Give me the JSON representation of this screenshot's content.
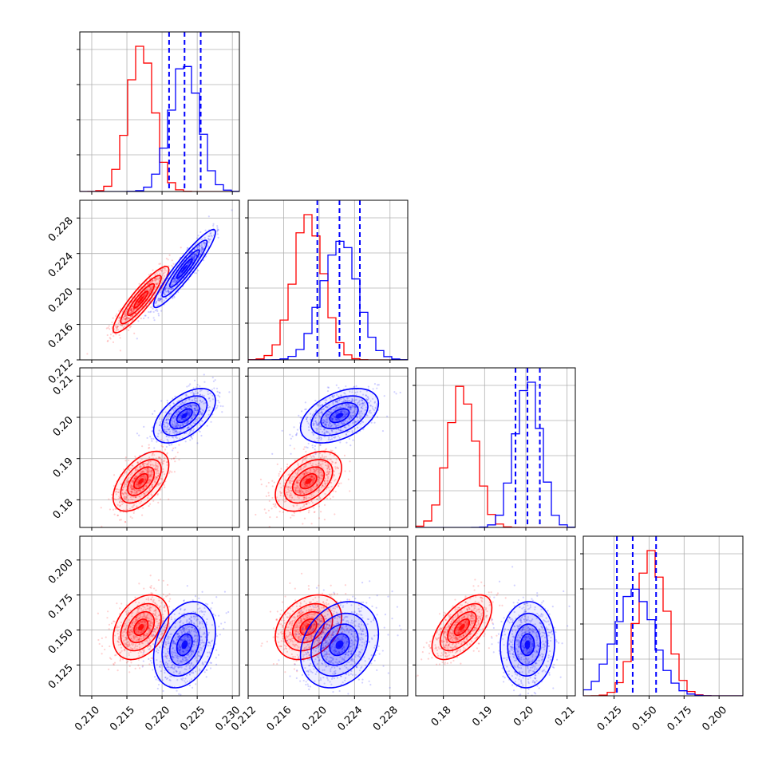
{
  "chart_data": {
    "type": "corner",
    "parameters": 4,
    "grid": true,
    "colors": {
      "sample_a": "#ff0000",
      "sample_b": "#0000ff",
      "quantile_lines": "#0000ff"
    },
    "axes": [
      {
        "lim": [
          0.2083,
          0.231
        ],
        "ticks": [
          0.21,
          0.215,
          0.22,
          0.225,
          0.23
        ],
        "tick_labels": [
          "0.210",
          "0.215",
          "0.220",
          "0.225",
          "0.230"
        ]
      },
      {
        "lim": [
          0.212,
          0.23
        ],
        "ticks": [
          0.212,
          0.216,
          0.22,
          0.224,
          0.228
        ],
        "tick_labels": [
          "0.212",
          "0.216",
          "0.220",
          "0.224",
          "0.228"
        ]
      },
      {
        "lim": [
          0.1733,
          0.212
        ],
        "ticks": [
          0.18,
          0.19,
          0.2,
          0.21
        ],
        "tick_labels": [
          "0.18",
          "0.19",
          "0.20",
          "0.21"
        ]
      },
      {
        "lim": [
          0.103,
          0.217
        ],
        "ticks": [
          0.125,
          0.15,
          0.175,
          0.2
        ],
        "tick_labels": [
          "0.125",
          "0.150",
          "0.175",
          "0.200"
        ]
      }
    ],
    "series": [
      {
        "color": "red",
        "mean": [
          0.217,
          0.2188,
          0.1845,
          0.152
        ],
        "std": [
          0.0018,
          0.0017,
          0.0033,
          0.0105
        ]
      },
      {
        "color": "blue",
        "mean": [
          0.2232,
          0.2223,
          0.2004,
          0.1395
        ],
        "std": [
          0.002,
          0.002,
          0.003,
          0.014
        ]
      }
    ],
    "correlations": [
      {
        "i": 1,
        "j": 0,
        "red": 0.9,
        "blue": 0.93
      },
      {
        "i": 2,
        "j": 0,
        "red": 0.55,
        "blue": 0.55
      },
      {
        "i": 2,
        "j": 1,
        "red": 0.45,
        "blue": 0.45
      },
      {
        "i": 3,
        "j": 0,
        "red": 0.35,
        "blue": 0.3
      },
      {
        "i": 3,
        "j": 1,
        "red": 0.3,
        "blue": 0.25
      },
      {
        "i": 3,
        "j": 2,
        "red": 0.6,
        "blue": 0.05
      }
    ],
    "quantiles": [
      [
        0.221,
        0.2232,
        0.2255
      ],
      [
        0.2198,
        0.2223,
        0.2246
      ],
      [
        0.1975,
        0.2004,
        0.2034
      ],
      [
        0.127,
        0.1383,
        0.155
      ]
    ]
  }
}
